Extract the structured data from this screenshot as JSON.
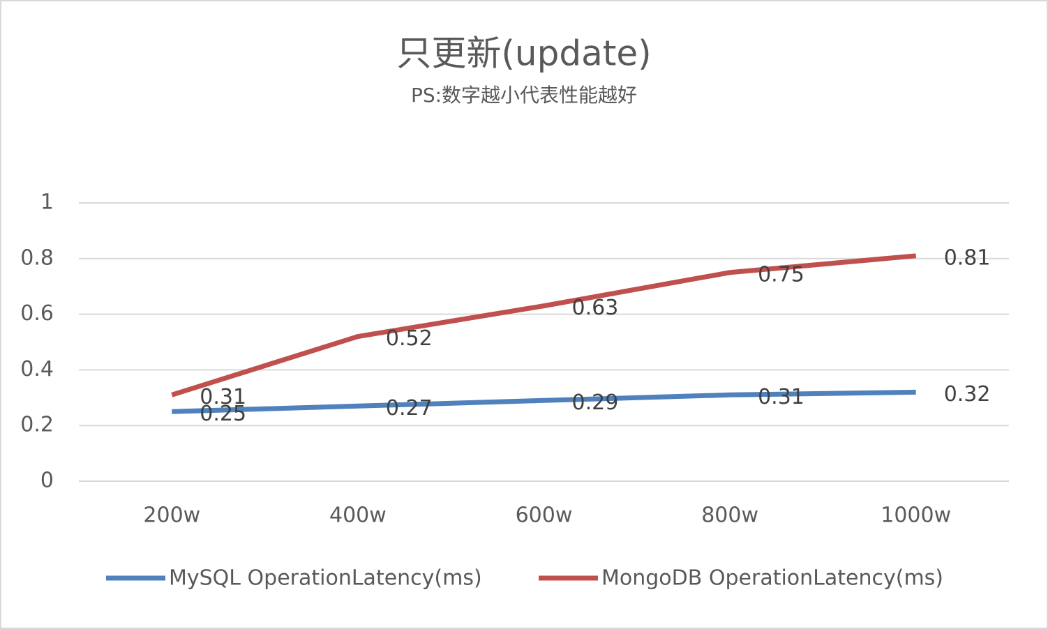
{
  "chart_data": {
    "type": "line",
    "title": "只更新(update)",
    "subtitle": "PS:数字越小代表性能越好",
    "categories": [
      "200w",
      "400w",
      "600w",
      "800w",
      "1000w"
    ],
    "series": [
      {
        "name": "MySQL OperationLatency(ms)",
        "color": "#4f81bd",
        "values": [
          0.25,
          0.27,
          0.29,
          0.31,
          0.32
        ]
      },
      {
        "name": "MongoDB OperationLatency(ms)",
        "color": "#c0504d",
        "values": [
          0.31,
          0.52,
          0.63,
          0.75,
          0.81
        ]
      }
    ],
    "ylim": [
      0,
      1
    ],
    "yticks": [
      0,
      0.2,
      0.4,
      0.6,
      0.8,
      1
    ],
    "grid": true,
    "legend": "bottom"
  }
}
